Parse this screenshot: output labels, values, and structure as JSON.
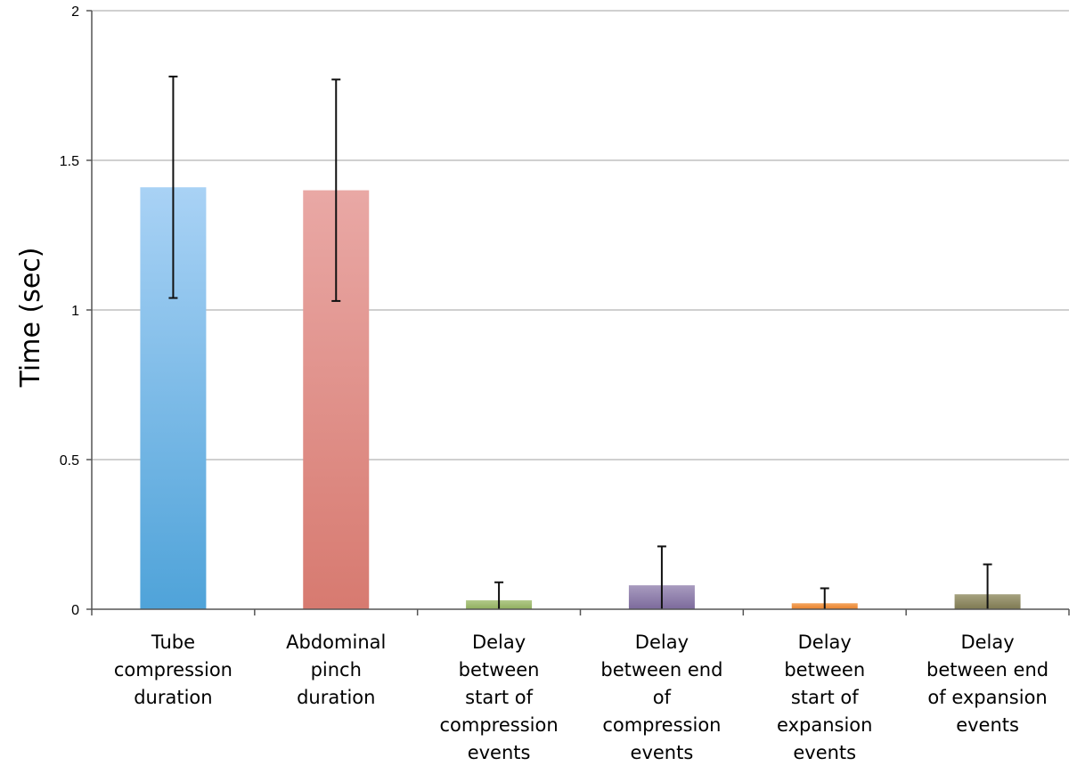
{
  "chart_data": {
    "type": "bar",
    "title": "",
    "xlabel": "",
    "ylabel": "Time (sec)",
    "ylim": [
      0,
      2
    ],
    "yticks": [
      "0",
      "0.5",
      "1",
      "1.5",
      "2"
    ],
    "yticks_values": [
      0,
      0.5,
      1,
      1.5,
      2
    ],
    "grid": true,
    "categories": [
      [
        "Tube",
        "compression",
        "duration"
      ],
      [
        "Abdominal",
        "pinch",
        "duration"
      ],
      [
        "Delay",
        "between",
        "start of",
        "compression",
        "events"
      ],
      [
        "Delay",
        "between end",
        "of",
        "compression",
        "events"
      ],
      [
        "Delay",
        "between",
        "start of",
        "expansion",
        "events"
      ],
      [
        "Delay",
        "between end",
        "of expansion",
        "events"
      ]
    ],
    "values": [
      1.41,
      1.4,
      0.03,
      0.08,
      0.02,
      0.05
    ],
    "error": [
      0.37,
      0.37,
      0.06,
      0.13,
      0.05,
      0.1
    ],
    "colors": [
      [
        "#a9d2f5",
        "#4fa3d9"
      ],
      [
        "#e9a8a5",
        "#d77a70"
      ],
      [
        "#b2c98a",
        "#8fae5e"
      ],
      [
        "#a89bbf",
        "#7c6a9c"
      ],
      [
        "#f4a45e",
        "#e8822c"
      ],
      [
        "#a6a27f",
        "#7e7952"
      ]
    ]
  }
}
